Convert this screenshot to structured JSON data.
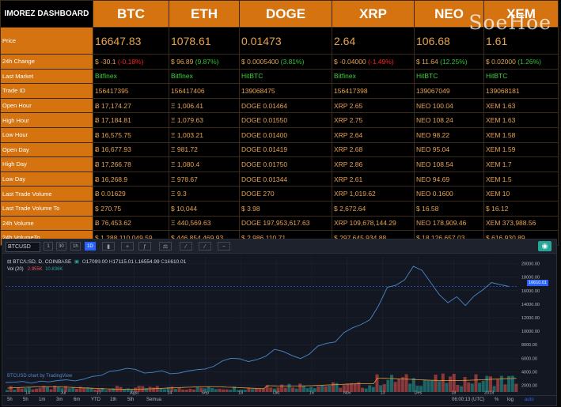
{
  "dashboard": {
    "brand": "IMOREZ DASHBOARD",
    "watermark": "SoeHoe",
    "coins": [
      "BTC",
      "ETH",
      "DOGE",
      "XRP",
      "NEO",
      "XEM"
    ],
    "rows": [
      {
        "label": "Price",
        "cells": [
          {
            "t": "16647.83",
            "c": "dn"
          },
          {
            "t": "1078.61",
            "c": "dn"
          },
          {
            "t": "0.01473",
            "c": "up"
          },
          {
            "t": "2.64",
            "c": ""
          },
          {
            "t": "106.68",
            "c": "dn"
          },
          {
            "t": "1.61",
            "c": ""
          }
        ]
      },
      {
        "label": "24h Change",
        "cells": [
          {
            "t": "$ -30.1",
            "p": "(-0.18%)",
            "pc": "dn"
          },
          {
            "t": "$ 96.89",
            "p": "(9.87%)",
            "pc": "up"
          },
          {
            "t": "$ 0.0005400",
            "p": "(3.81%)",
            "pc": "up"
          },
          {
            "t": "$ -0.04000",
            "p": "(-1.49%)",
            "pc": "dn"
          },
          {
            "t": "$ 11.64",
            "p": "(12.25%)",
            "pc": "up"
          },
          {
            "t": "$ 0.02000",
            "p": "(1.26%)",
            "pc": "up"
          }
        ]
      },
      {
        "label": "Last Market",
        "cells": [
          {
            "t": "Bitfinex",
            "c": "grn"
          },
          {
            "t": "Bitfinex",
            "c": "grn"
          },
          {
            "t": "HitBTC",
            "c": "grn"
          },
          {
            "t": "Bitfinex",
            "c": "grn"
          },
          {
            "t": "HitBTC",
            "c": "grn"
          },
          {
            "t": "HitBTC",
            "c": "grn"
          }
        ]
      },
      {
        "label": "Trade ID",
        "cells": [
          {
            "t": "156417395"
          },
          {
            "t": "156417406"
          },
          {
            "t": "139068475"
          },
          {
            "t": "156417398"
          },
          {
            "t": "139067049"
          },
          {
            "t": "139068181"
          }
        ]
      },
      {
        "label": "Open Hour",
        "cells": [
          {
            "t": "Ƀ 17,174.27"
          },
          {
            "t": "Ξ 1,006.41"
          },
          {
            "t": "DOGE 0.01464"
          },
          {
            "t": "XRP 2.65"
          },
          {
            "t": "NEO 100.04"
          },
          {
            "t": "XEM 1.63"
          }
        ]
      },
      {
        "label": "High Hour",
        "cells": [
          {
            "t": "Ƀ 17,184.81"
          },
          {
            "t": "Ξ 1,079.63"
          },
          {
            "t": "DOGE 0.01550"
          },
          {
            "t": "XRP 2.75"
          },
          {
            "t": "NEO 108.24"
          },
          {
            "t": "XEM 1.63"
          }
        ]
      },
      {
        "label": "Low Hour",
        "cells": [
          {
            "t": "Ƀ 16,575.75"
          },
          {
            "t": "Ξ 1,003.21"
          },
          {
            "t": "DOGE 0.01400"
          },
          {
            "t": "XRP 2.64"
          },
          {
            "t": "NEO 98.22"
          },
          {
            "t": "XEM 1.58"
          }
        ]
      },
      {
        "label": "Open Day",
        "cells": [
          {
            "t": "Ƀ 16,677.93"
          },
          {
            "t": "Ξ 981.72"
          },
          {
            "t": "DOGE 0.01419"
          },
          {
            "t": "XRP 2.68"
          },
          {
            "t": "NEO 95.04"
          },
          {
            "t": "XEM 1.59"
          }
        ]
      },
      {
        "label": "High Day",
        "cells": [
          {
            "t": "Ƀ 17,266.78"
          },
          {
            "t": "Ξ 1,080.4"
          },
          {
            "t": "DOGE 0.01750"
          },
          {
            "t": "XRP 2.86"
          },
          {
            "t": "NEO 108.54"
          },
          {
            "t": "XEM 1.7"
          }
        ]
      },
      {
        "label": "Low Day",
        "cells": [
          {
            "t": "Ƀ 16,268.9"
          },
          {
            "t": "Ξ 978.67"
          },
          {
            "t": "DOGE 0.01344"
          },
          {
            "t": "XRP 2.61"
          },
          {
            "t": "NEO 94.69"
          },
          {
            "t": "XEM 1.5"
          }
        ]
      },
      {
        "label": "Last Trade Volume",
        "cells": [
          {
            "t": "Ƀ 0.01629"
          },
          {
            "t": "Ξ 9.3"
          },
          {
            "t": "DOGE 270"
          },
          {
            "t": "XRP 1,019.62"
          },
          {
            "t": "NEO 0.1600"
          },
          {
            "t": "XEM 10"
          }
        ]
      },
      {
        "label": "Last Trade Volume To",
        "cells": [
          {
            "t": "$ 270.75"
          },
          {
            "t": "$ 10,044"
          },
          {
            "t": "$ 3.98"
          },
          {
            "t": "$ 2,672.64"
          },
          {
            "t": "$ 16.58"
          },
          {
            "t": "$ 16.12"
          }
        ]
      },
      {
        "label": "24h Volume",
        "cells": [
          {
            "t": "Ƀ 76,453.62"
          },
          {
            "t": "Ξ 440,569.63"
          },
          {
            "t": "DOGE 197,953,617.63"
          },
          {
            "t": "XRP 109,678,144.29"
          },
          {
            "t": "NEO 178,909.46"
          },
          {
            "t": "XEM 373,988.56"
          }
        ]
      },
      {
        "label": "24h VolumeTo",
        "cells": [
          {
            "t": "$ 1,288,110,049.59"
          },
          {
            "t": "$ 446,854,469.93"
          },
          {
            "t": "$ 2,986,110.71"
          },
          {
            "t": "$ 297,645,934.88"
          },
          {
            "t": "$ 18,126,657.03"
          },
          {
            "t": "$ 616,930.89"
          }
        ]
      }
    ]
  },
  "chart_toolbar": {
    "symbol": "BTCUSD",
    "timeframes": [
      "1",
      "30",
      "1h",
      "1D"
    ],
    "active_timeframe": "1D"
  },
  "chart_legend": {
    "pair": "BTC/USD, D, COINBASE",
    "o_label": "O",
    "o": "17099.00",
    "h_label": "H",
    "h": "17115.01",
    "l_label": "L",
    "l": "16554.99",
    "c_label": "C",
    "c": "16610.01",
    "vol_label": "Vol (20)",
    "vol_a": "2.955K",
    "vol_b": "10.836K",
    "credit": "BTCUSD chart by TradingView",
    "last_price": "16610.01"
  },
  "chart_data": {
    "type": "line",
    "series": [
      {
        "values": [
          2400,
          2450,
          2550,
          2300,
          2600,
          2500,
          2700,
          2800,
          2650,
          2900,
          3300,
          3450,
          4050,
          4200,
          4500,
          4350,
          3800,
          3900,
          4150,
          3700,
          3800,
          4100,
          4300,
          4400,
          4800,
          5600,
          6000,
          5900,
          5500,
          5800,
          6300,
          7300,
          7000,
          6400,
          5950,
          6600,
          7800,
          8200,
          8400,
          9800,
          10500,
          11000,
          11700,
          13800,
          16500,
          16800,
          17600,
          19600,
          19000,
          17200,
          15400,
          14200,
          15100,
          13800,
          15200,
          16100,
          17200,
          16900,
          16610
        ]
      }
    ],
    "x_ticks": [
      "14",
      "Jul",
      "17",
      "Agst",
      "14",
      "Sep",
      "18",
      "Okt",
      "16",
      "Nov",
      "13",
      "Des",
      "18",
      "2018"
    ],
    "y_ticks": [
      "20000.00",
      "18000.00",
      "16000.00",
      "14000.00",
      "12000.00",
      "10000.00",
      "8000.00",
      "6000.00",
      "4000.00",
      "2000.00"
    ],
    "ylim": [
      1000,
      21000
    ]
  },
  "bottom_bar": {
    "ranges": [
      "5h",
      "5h",
      "1m",
      "3m",
      "6m",
      "YTD",
      "1th",
      "5th",
      "Semua"
    ],
    "time": "06:00:13 (UTC)",
    "percent": "%",
    "log": "log",
    "auto": "auto"
  },
  "colors": {
    "orange": "#d4730f",
    "line": "#4a86c8",
    "vol_up": "#26a69a",
    "vol_down": "#ef5350"
  }
}
